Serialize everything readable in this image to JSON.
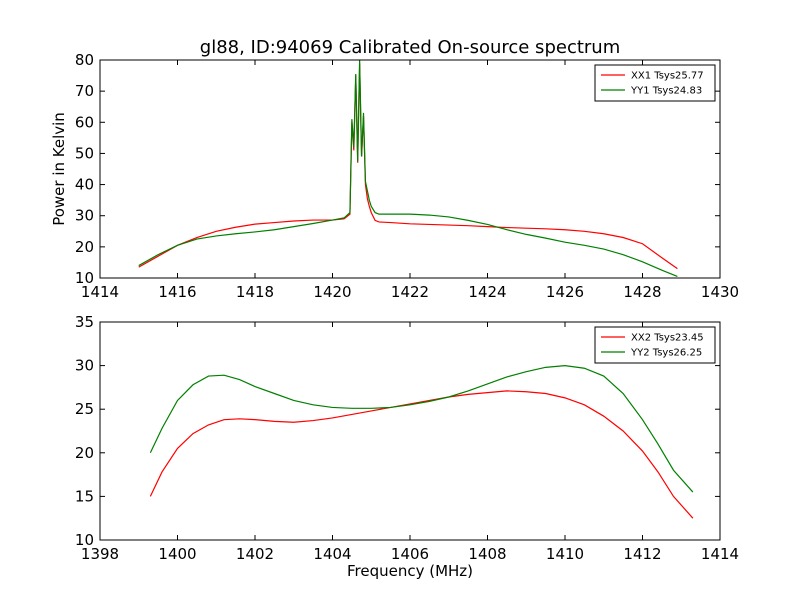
{
  "figure": {
    "title": "gl88, ID:94069 Calibrated On-source spectrum"
  },
  "chart_data": [
    {
      "type": "line",
      "title": "gl88, ID:94069 Calibrated On-source spectrum",
      "xlabel": "",
      "ylabel": "Power in Kelvin",
      "xlim": [
        1414,
        1430
      ],
      "ylim": [
        10,
        80
      ],
      "xticks": [
        "1414",
        "1416",
        "1418",
        "1420",
        "1422",
        "1424",
        "1426",
        "1428",
        "1430"
      ],
      "yticks": [
        "10",
        "20",
        "30",
        "40",
        "50",
        "60",
        "70",
        "80"
      ],
      "legend_position": "top-right",
      "grid": false,
      "series": [
        {
          "name": "XX1 Tsys25.77",
          "color": "#ff0000",
          "x": [
            1415.0,
            1415.5,
            1416.0,
            1416.5,
            1417.0,
            1417.5,
            1418.0,
            1418.5,
            1419.0,
            1419.5,
            1420.0,
            1420.3,
            1420.45,
            1420.5,
            1420.55,
            1420.6,
            1420.65,
            1420.7,
            1420.75,
            1420.8,
            1420.85,
            1420.9,
            1420.95,
            1421.0,
            1421.1,
            1421.2,
            1421.5,
            1422.0,
            1422.5,
            1423.0,
            1423.5,
            1424.0,
            1424.5,
            1425.0,
            1425.5,
            1426.0,
            1426.5,
            1427.0,
            1427.5,
            1428.0,
            1428.5,
            1428.9
          ],
          "values": [
            13.5,
            17.0,
            20.5,
            23.0,
            25.0,
            26.3,
            27.3,
            27.8,
            28.3,
            28.6,
            28.6,
            29.0,
            30.5,
            60.0,
            51.0,
            75.0,
            47.0,
            79.0,
            49.0,
            62.0,
            40.0,
            35.5,
            33.0,
            31.0,
            28.5,
            28.0,
            27.8,
            27.4,
            27.2,
            27.0,
            26.8,
            26.5,
            26.2,
            26.0,
            25.8,
            25.5,
            25.0,
            24.2,
            23.0,
            21.0,
            16.5,
            13.0
          ]
        },
        {
          "name": "YY1 Tsys24.83",
          "color": "#008000",
          "x": [
            1415.0,
            1415.5,
            1416.0,
            1416.5,
            1417.0,
            1417.5,
            1418.0,
            1418.5,
            1419.0,
            1419.5,
            1420.0,
            1420.3,
            1420.45,
            1420.5,
            1420.55,
            1420.6,
            1420.65,
            1420.7,
            1420.75,
            1420.8,
            1420.85,
            1420.9,
            1420.95,
            1421.0,
            1421.1,
            1421.2,
            1421.5,
            1422.0,
            1422.5,
            1423.0,
            1423.5,
            1424.0,
            1424.5,
            1425.0,
            1425.5,
            1426.0,
            1426.5,
            1427.0,
            1427.5,
            1428.0,
            1428.5,
            1428.9
          ],
          "values": [
            14.0,
            17.5,
            20.5,
            22.5,
            23.5,
            24.2,
            24.8,
            25.5,
            26.5,
            27.5,
            28.6,
            29.3,
            31.0,
            61.0,
            52.0,
            75.5,
            47.5,
            80.0,
            49.0,
            63.0,
            41.0,
            38.0,
            35.0,
            33.0,
            31.0,
            30.5,
            30.5,
            30.5,
            30.2,
            29.6,
            28.5,
            27.2,
            25.5,
            24.0,
            22.8,
            21.5,
            20.5,
            19.3,
            17.5,
            15.2,
            12.5,
            10.5
          ]
        }
      ]
    },
    {
      "type": "line",
      "title": "",
      "xlabel": "Frequency (MHz)",
      "ylabel": "",
      "xlim": [
        1398,
        1414
      ],
      "ylim": [
        10,
        35
      ],
      "xticks": [
        "1398",
        "1400",
        "1402",
        "1404",
        "1406",
        "1408",
        "1410",
        "1412",
        "1414"
      ],
      "yticks": [
        "10",
        "15",
        "20",
        "25",
        "30",
        "35"
      ],
      "legend_position": "top-right",
      "grid": false,
      "series": [
        {
          "name": "XX2 Tsys23.45",
          "color": "#ff0000",
          "x": [
            1399.3,
            1399.6,
            1400.0,
            1400.4,
            1400.8,
            1401.2,
            1401.6,
            1402.0,
            1402.5,
            1403.0,
            1403.5,
            1404.0,
            1404.5,
            1405.0,
            1405.5,
            1406.0,
            1406.5,
            1407.0,
            1407.5,
            1408.0,
            1408.5,
            1409.0,
            1409.5,
            1410.0,
            1410.5,
            1411.0,
            1411.5,
            1412.0,
            1412.4,
            1412.8,
            1413.3
          ],
          "values": [
            15.0,
            17.8,
            20.5,
            22.2,
            23.2,
            23.8,
            23.9,
            23.8,
            23.6,
            23.5,
            23.7,
            24.0,
            24.4,
            24.8,
            25.2,
            25.6,
            26.0,
            26.4,
            26.7,
            26.9,
            27.1,
            27.0,
            26.8,
            26.3,
            25.5,
            24.2,
            22.5,
            20.2,
            17.8,
            15.0,
            12.5
          ]
        },
        {
          "name": "YY2 Tsys26.25",
          "color": "#008000",
          "x": [
            1399.3,
            1399.6,
            1400.0,
            1400.4,
            1400.8,
            1401.2,
            1401.6,
            1402.0,
            1402.5,
            1403.0,
            1403.5,
            1404.0,
            1404.5,
            1405.0,
            1405.5,
            1406.0,
            1406.5,
            1407.0,
            1407.5,
            1408.0,
            1408.5,
            1409.0,
            1409.5,
            1410.0,
            1410.5,
            1411.0,
            1411.5,
            1412.0,
            1412.4,
            1412.8,
            1413.3
          ],
          "values": [
            20.0,
            22.8,
            26.0,
            27.8,
            28.8,
            28.9,
            28.4,
            27.6,
            26.8,
            26.0,
            25.5,
            25.2,
            25.1,
            25.1,
            25.2,
            25.5,
            25.9,
            26.4,
            27.1,
            27.9,
            28.7,
            29.3,
            29.8,
            30.0,
            29.7,
            28.8,
            26.8,
            23.8,
            21.0,
            18.0,
            15.5
          ]
        }
      ]
    }
  ]
}
